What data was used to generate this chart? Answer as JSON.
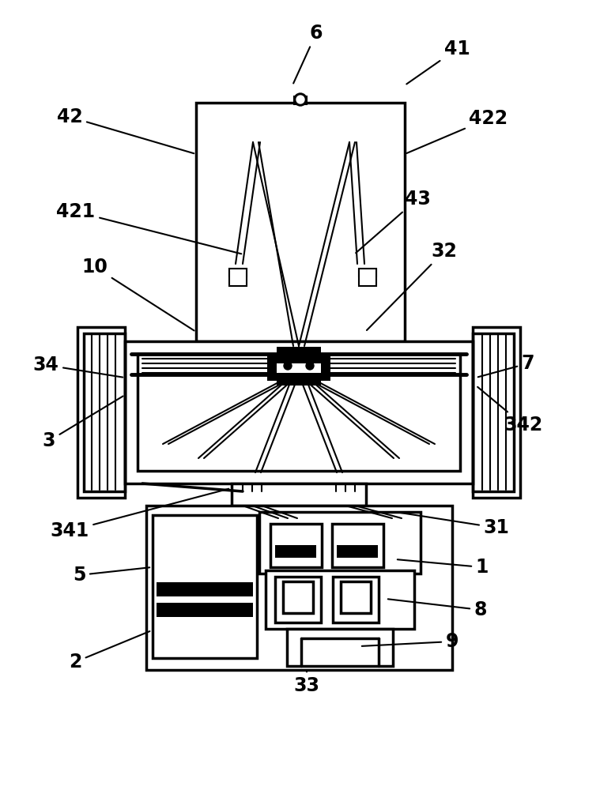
{
  "bg_color": "#ffffff",
  "lc": "#000000",
  "lw": 2.5,
  "tlw": 1.5,
  "figsize": [
    7.59,
    10.0
  ],
  "dpi": 100,
  "labels": [
    [
      "6",
      400,
      42,
      370,
      108
    ],
    [
      "41",
      578,
      62,
      512,
      108
    ],
    [
      "42",
      88,
      148,
      248,
      195
    ],
    [
      "422",
      618,
      150,
      512,
      195
    ],
    [
      "421",
      96,
      268,
      308,
      322
    ],
    [
      "43",
      528,
      252,
      448,
      322
    ],
    [
      "10",
      120,
      338,
      248,
      420
    ],
    [
      "32",
      562,
      318,
      462,
      420
    ],
    [
      "34",
      58,
      462,
      158,
      478
    ],
    [
      "7",
      668,
      460,
      602,
      478
    ],
    [
      "3",
      62,
      558,
      158,
      500
    ],
    [
      "342",
      662,
      538,
      602,
      488
    ],
    [
      "341",
      88,
      672,
      292,
      618
    ],
    [
      "31",
      628,
      668,
      500,
      648
    ],
    [
      "5",
      100,
      728,
      192,
      718
    ],
    [
      "1",
      610,
      718,
      500,
      708
    ],
    [
      "2",
      95,
      838,
      192,
      798
    ],
    [
      "8",
      608,
      772,
      488,
      758
    ],
    [
      "9",
      572,
      812,
      455,
      818
    ],
    [
      "33",
      388,
      868,
      388,
      848
    ]
  ]
}
